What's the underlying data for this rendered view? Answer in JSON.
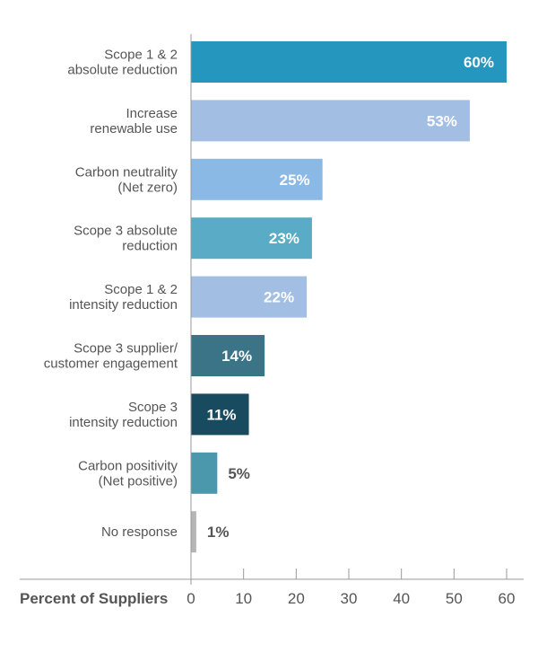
{
  "chart_data": {
    "type": "bar",
    "orientation": "horizontal",
    "title": "",
    "xlabel": "Percent of Suppliers",
    "ylabel": "",
    "xlim": [
      0,
      60
    ],
    "xticks": [
      0,
      10,
      20,
      30,
      40,
      50,
      60
    ],
    "grid": false,
    "categories": [
      [
        "Scope 1 & 2",
        "absolute reduction"
      ],
      [
        "Increase",
        "renewable use"
      ],
      [
        "Carbon neutrality",
        "(Net zero)"
      ],
      [
        "Scope 3 absolute",
        "reduction"
      ],
      [
        "Scope 1 & 2",
        "intensity reduction"
      ],
      [
        "Scope 3 supplier/",
        "customer engagement"
      ],
      [
        "Scope 3",
        "intensity reduction"
      ],
      [
        "Carbon positivity",
        "(Net positive)"
      ],
      [
        "No response"
      ]
    ],
    "values": [
      60,
      53,
      25,
      23,
      22,
      14,
      11,
      5,
      1
    ],
    "value_labels": [
      "60%",
      "53%",
      "25%",
      "23%",
      "22%",
      "14%",
      "11%",
      "5%",
      "1%"
    ],
    "colors": [
      "#2596be",
      "#a2bfe3",
      "#8bb9e6",
      "#5aabc5",
      "#a2bfe3",
      "#3a7486",
      "#194b60",
      "#4b98ad",
      "#b5b5b5"
    ],
    "axis_color": "#999999"
  }
}
